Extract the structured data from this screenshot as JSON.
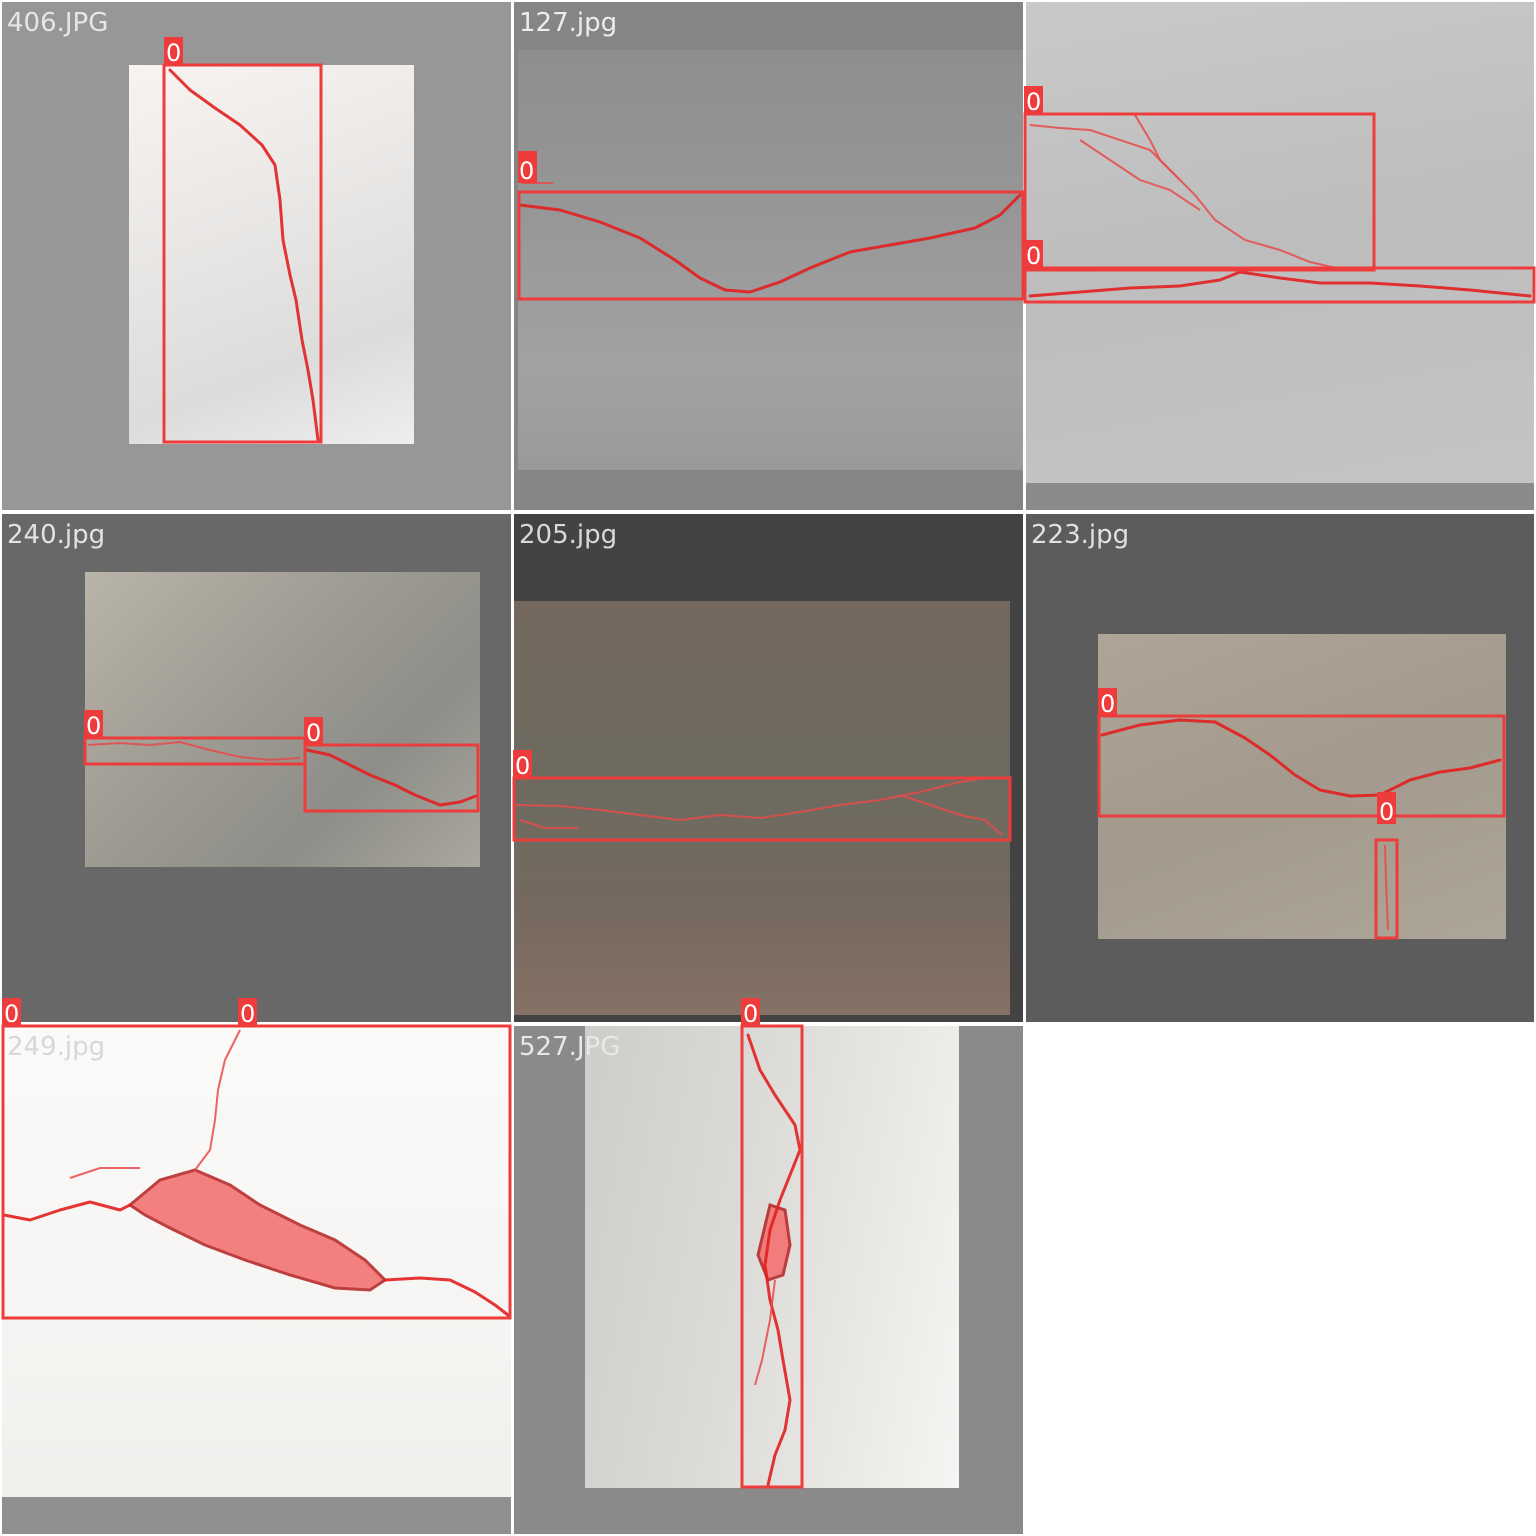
{
  "tiles": [
    {
      "filename": "406.JPG"
    },
    {
      "filename": "127.jpg"
    },
    {
      "filename": ""
    },
    {
      "filename": "240.jpg"
    },
    {
      "filename": "205.jpg"
    },
    {
      "filename": "223.jpg"
    },
    {
      "filename": "249.jpg"
    },
    {
      "filename": "527.JPG"
    }
  ],
  "detection_label": "0",
  "colors": {
    "box": "#ee3c3c",
    "label_bg": "#ee3c3c",
    "label_text": "#ffffff"
  }
}
